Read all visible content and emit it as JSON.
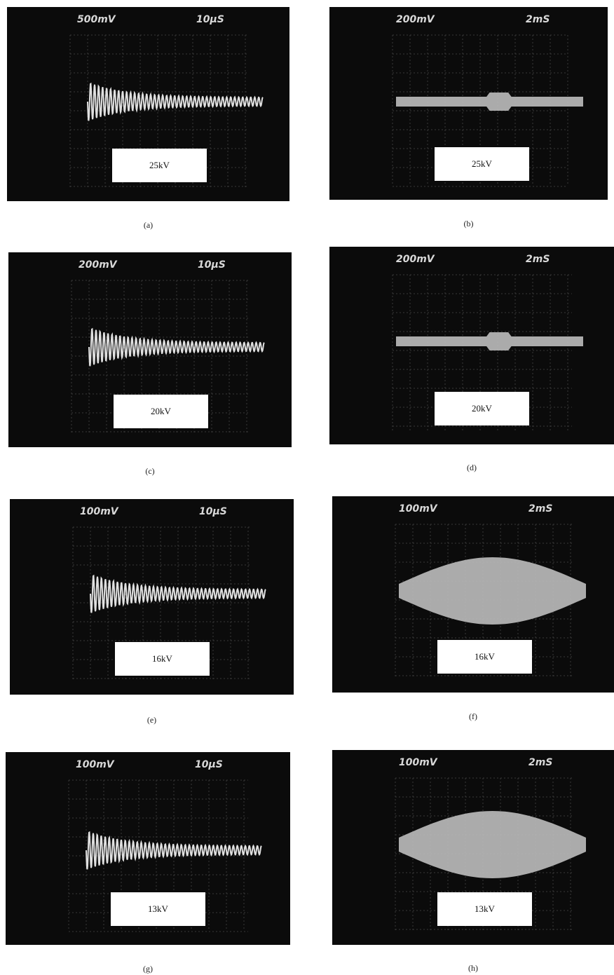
{
  "panels": [
    {
      "volts": "500mV",
      "time": "10μS",
      "label": "25kV",
      "caption": "(a)"
    },
    {
      "volts": "200mV",
      "time": "2mS",
      "label": "25kV",
      "caption": "(b)"
    },
    {
      "volts": "200mV",
      "time": "10μS",
      "label": "20kV",
      "caption": "(c)"
    },
    {
      "volts": "200mV",
      "time": "2mS",
      "label": "20kV",
      "caption": "(d)"
    },
    {
      "volts": "100mV",
      "time": "10μS",
      "label": "16kV",
      "caption": "(e)"
    },
    {
      "volts": "100mV",
      "time": "2mS",
      "label": "16kV",
      "caption": "(f)"
    },
    {
      "volts": "100mV",
      "time": "10μS",
      "label": "13kV",
      "caption": "(g)"
    },
    {
      "volts": "100mV",
      "time": "2mS",
      "label": "13kV",
      "caption": "(h)"
    }
  ]
}
